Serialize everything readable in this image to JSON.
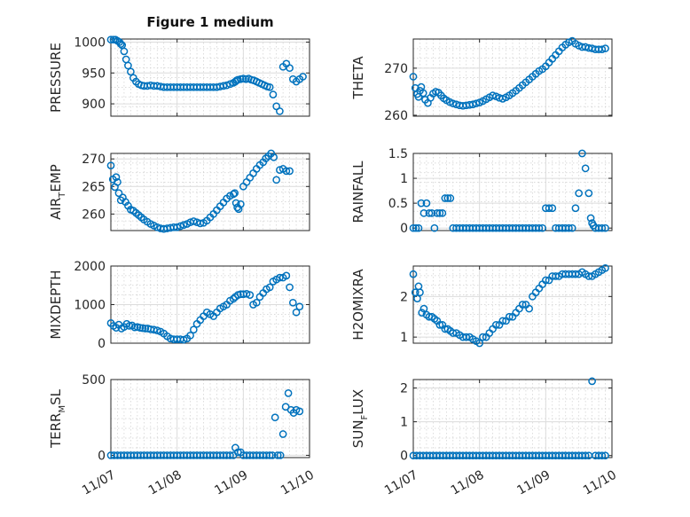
{
  "figure_title": "Figure 1 medium",
  "colors": {
    "marker": "#0072BD",
    "axis": "#262626"
  },
  "chart_data": [
    {
      "type": "scatter",
      "ylabel": "PRESSURE",
      "ylabel_main": "PRESSURE",
      "ylabel_sub": "",
      "ylabel_tail": "",
      "ylim": [
        880,
        1005
      ],
      "yticks": [
        900,
        950,
        1000
      ],
      "ytick_labels": [
        "900",
        "950",
        "1000"
      ],
      "xlim": [
        0,
        3
      ],
      "xticks": [
        0,
        1,
        2,
        3
      ],
      "xtick_labels": [],
      "x": [
        0.0,
        0.04,
        0.07,
        0.1,
        0.13,
        0.15,
        0.17,
        0.2,
        0.23,
        0.26,
        0.3,
        0.34,
        0.38,
        0.42,
        0.46,
        0.5,
        0.55,
        0.6,
        0.65,
        0.7,
        0.75,
        0.8,
        0.85,
        0.9,
        0.95,
        1.0,
        1.05,
        1.1,
        1.15,
        1.2,
        1.25,
        1.3,
        1.35,
        1.4,
        1.45,
        1.5,
        1.55,
        1.6,
        1.65,
        1.7,
        1.75,
        1.8,
        1.85,
        1.88,
        1.9,
        1.92,
        1.96,
        2.0,
        2.04,
        2.08,
        2.12,
        2.16,
        2.2,
        2.24,
        2.28,
        2.32,
        2.36,
        2.4,
        2.45,
        2.5,
        2.55,
        2.6,
        2.65,
        2.7,
        2.75,
        2.8,
        2.85,
        2.9
      ],
      "y": [
        1004,
        1004,
        1004,
        1002,
        1000,
        997,
        995,
        985,
        972,
        962,
        952,
        942,
        936,
        932,
        930,
        929,
        929,
        930,
        929,
        929,
        928,
        927,
        927,
        927,
        927,
        927,
        927,
        927,
        927,
        927,
        927,
        927,
        927,
        927,
        927,
        927,
        927,
        927,
        928,
        929,
        930,
        932,
        934,
        936,
        938,
        939,
        940,
        941,
        940,
        941,
        939,
        938,
        936,
        934,
        932,
        930,
        928,
        927,
        915,
        896,
        888,
        960,
        965,
        958,
        940,
        936,
        940,
        944
      ]
    },
    {
      "type": "scatter",
      "ylabel": "THETA",
      "ylabel_main": "THETA",
      "ylabel_sub": "",
      "ylabel_tail": "",
      "ylim": [
        259.8,
        276.2
      ],
      "yticks": [
        260,
        270
      ],
      "ytick_labels": [
        "260",
        "270"
      ],
      "xlim": [
        0,
        3
      ],
      "xticks": [
        0,
        1,
        2,
        3
      ],
      "xtick_labels": [],
      "x": [
        0.0,
        0.03,
        0.06,
        0.08,
        0.1,
        0.12,
        0.15,
        0.18,
        0.22,
        0.26,
        0.3,
        0.34,
        0.38,
        0.42,
        0.46,
        0.5,
        0.55,
        0.6,
        0.65,
        0.7,
        0.75,
        0.8,
        0.85,
        0.9,
        0.95,
        1.0,
        1.05,
        1.1,
        1.15,
        1.2,
        1.25,
        1.3,
        1.35,
        1.4,
        1.45,
        1.5,
        1.55,
        1.6,
        1.65,
        1.7,
        1.75,
        1.8,
        1.85,
        1.9,
        1.95,
        2.0,
        2.05,
        2.1,
        2.15,
        2.2,
        2.25,
        2.3,
        2.35,
        2.4,
        2.45,
        2.5,
        2.55,
        2.6,
        2.65,
        2.7,
        2.75,
        2.8,
        2.85,
        2.9
      ],
      "y": [
        268.2,
        265.8,
        264.5,
        263.9,
        265.2,
        266.0,
        264.7,
        263.3,
        262.6,
        263.7,
        264.6,
        265.0,
        264.8,
        264.2,
        263.6,
        263.2,
        262.8,
        262.5,
        262.3,
        262.1,
        262.0,
        262.1,
        262.2,
        262.3,
        262.5,
        262.7,
        263.0,
        263.4,
        263.8,
        264.2,
        264.0,
        263.7,
        263.5,
        263.8,
        264.2,
        264.7,
        265.2,
        265.8,
        266.4,
        267.0,
        267.6,
        268.2,
        268.8,
        269.4,
        269.8,
        270.4,
        271.2,
        272.0,
        272.8,
        273.6,
        274.4,
        275.0,
        275.5,
        275.8,
        275.2,
        274.8,
        274.5,
        274.5,
        274.3,
        274.2,
        274.0,
        274.0,
        274.0,
        274.2
      ]
    },
    {
      "type": "scatter",
      "ylabel": "AIR_TEMP",
      "ylabel_main": "AIR",
      "ylabel_sub": "T",
      "ylabel_tail": "EMP",
      "ylim": [
        257,
        271
      ],
      "yticks": [
        260,
        265,
        270
      ],
      "ytick_labels": [
        "260",
        "265",
        "270"
      ],
      "xlim": [
        0,
        3
      ],
      "xticks": [
        0,
        1,
        2,
        3
      ],
      "xtick_labels": [],
      "x": [
        0.0,
        0.03,
        0.06,
        0.08,
        0.1,
        0.12,
        0.15,
        0.18,
        0.22,
        0.26,
        0.3,
        0.34,
        0.38,
        0.42,
        0.46,
        0.5,
        0.55,
        0.6,
        0.65,
        0.7,
        0.75,
        0.8,
        0.85,
        0.9,
        0.95,
        1.0,
        1.05,
        1.1,
        1.15,
        1.2,
        1.25,
        1.3,
        1.35,
        1.4,
        1.45,
        1.5,
        1.55,
        1.6,
        1.65,
        1.7,
        1.75,
        1.8,
        1.85,
        1.87,
        1.89,
        1.91,
        1.93,
        1.96,
        2.0,
        2.05,
        2.1,
        2.15,
        2.2,
        2.25,
        2.3,
        2.34,
        2.38,
        2.42,
        2.46,
        2.5,
        2.55,
        2.6,
        2.65,
        2.7
      ],
      "y": [
        268.8,
        266.3,
        264.9,
        266.7,
        265.8,
        263.8,
        262.5,
        263.0,
        262.2,
        261.5,
        260.8,
        260.6,
        260.2,
        259.8,
        259.4,
        259.0,
        258.6,
        258.2,
        257.9,
        257.6,
        257.4,
        257.3,
        257.4,
        257.5,
        257.6,
        257.6,
        257.8,
        258.0,
        258.2,
        258.5,
        258.7,
        258.5,
        258.3,
        258.4,
        258.8,
        259.4,
        260.0,
        260.7,
        261.4,
        262.1,
        262.8,
        263.3,
        263.6,
        263.8,
        262.0,
        261.2,
        260.9,
        261.8,
        265.0,
        265.8,
        266.6,
        267.4,
        268.2,
        268.9,
        269.4,
        270.1,
        270.5,
        271.0,
        270.3,
        266.2,
        268.0,
        268.2,
        267.8,
        267.8
      ]
    },
    {
      "type": "scatter",
      "ylabel": "RAINFALL",
      "ylabel_main": "RAINFALL",
      "ylabel_sub": "",
      "ylabel_tail": "",
      "ylim": [
        -0.05,
        1.5
      ],
      "yticks": [
        0,
        0.5,
        1,
        1.5
      ],
      "ytick_labels": [
        "0",
        "0.5",
        "1",
        "1.5"
      ],
      "xlim": [
        0,
        3
      ],
      "xticks": [
        0,
        1,
        2,
        3
      ],
      "xtick_labels": [],
      "x": [
        0.0,
        0.04,
        0.08,
        0.12,
        0.16,
        0.2,
        0.24,
        0.28,
        0.32,
        0.36,
        0.4,
        0.44,
        0.48,
        0.52,
        0.56,
        0.6,
        0.65,
        0.7,
        0.75,
        0.8,
        0.85,
        0.9,
        0.95,
        1.0,
        1.05,
        1.1,
        1.15,
        1.2,
        1.25,
        1.3,
        1.35,
        1.4,
        1.45,
        1.5,
        1.55,
        1.6,
        1.65,
        1.7,
        1.75,
        1.8,
        1.85,
        1.9,
        1.95,
        2.0,
        2.05,
        2.1,
        2.15,
        2.2,
        2.25,
        2.3,
        2.35,
        2.4,
        2.45,
        2.5,
        2.55,
        2.6,
        2.65,
        2.68,
        2.7,
        2.72,
        2.75,
        2.8,
        2.85,
        2.9
      ],
      "y": [
        0,
        0,
        0,
        0.5,
        0.3,
        0.5,
        0.3,
        0.3,
        0,
        0.3,
        0.3,
        0.3,
        0.6,
        0.6,
        0.6,
        0,
        0,
        0,
        0,
        0,
        0,
        0,
        0,
        0,
        0,
        0,
        0,
        0,
        0,
        0,
        0,
        0,
        0,
        0,
        0,
        0,
        0,
        0,
        0,
        0,
        0,
        0,
        0,
        0.4,
        0.4,
        0.4,
        0,
        0,
        0,
        0,
        0,
        0,
        0.4,
        0.7,
        1.5,
        1.2,
        0.7,
        0.2,
        0.1,
        0.05,
        0,
        0,
        0,
        0
      ]
    },
    {
      "type": "scatter",
      "ylabel": "MIXDEPTH",
      "ylabel_main": "MIXDEPTH",
      "ylabel_sub": "",
      "ylabel_tail": "",
      "ylim": [
        0,
        2000
      ],
      "yticks": [
        0,
        1000,
        2000
      ],
      "ytick_labels": [
        "0",
        "1000",
        "2000"
      ],
      "xlim": [
        0,
        3
      ],
      "xticks": [
        0,
        1,
        2,
        3
      ],
      "xtick_labels": [],
      "x": [
        0.0,
        0.04,
        0.08,
        0.12,
        0.16,
        0.2,
        0.24,
        0.28,
        0.32,
        0.36,
        0.4,
        0.44,
        0.48,
        0.52,
        0.56,
        0.6,
        0.65,
        0.7,
        0.75,
        0.8,
        0.85,
        0.9,
        0.95,
        1.0,
        1.05,
        1.1,
        1.15,
        1.2,
        1.25,
        1.3,
        1.35,
        1.4,
        1.45,
        1.5,
        1.55,
        1.6,
        1.65,
        1.7,
        1.75,
        1.8,
        1.85,
        1.88,
        1.92,
        1.96,
        2.0,
        2.05,
        2.1,
        2.15,
        2.2,
        2.25,
        2.3,
        2.35,
        2.4,
        2.45,
        2.5,
        2.55,
        2.6,
        2.65,
        2.7,
        2.75,
        2.8,
        2.85
      ],
      "y": [
        520,
        450,
        400,
        480,
        380,
        420,
        500,
        450,
        460,
        410,
        420,
        400,
        390,
        380,
        380,
        360,
        350,
        330,
        300,
        250,
        180,
        120,
        100,
        100,
        100,
        90,
        120,
        200,
        350,
        500,
        600,
        700,
        800,
        750,
        700,
        800,
        900,
        950,
        1000,
        1100,
        1150,
        1200,
        1250,
        1270,
        1270,
        1280,
        1250,
        1000,
        1050,
        1200,
        1300,
        1400,
        1450,
        1600,
        1650,
        1700,
        1700,
        1750,
        1450,
        1050,
        800,
        950
      ]
    },
    {
      "type": "scatter",
      "ylabel": "H2OMIXRA",
      "ylabel_main": "H2OMIXRA",
      "ylabel_sub": "",
      "ylabel_tail": "",
      "ylim": [
        0.85,
        2.75
      ],
      "yticks": [
        1,
        2
      ],
      "ytick_labels": [
        "1",
        "2"
      ],
      "xlim": [
        0,
        3
      ],
      "xticks": [
        0,
        1,
        2,
        3
      ],
      "xtick_labels": [],
      "x": [
        0.0,
        0.03,
        0.06,
        0.08,
        0.1,
        0.13,
        0.16,
        0.2,
        0.24,
        0.28,
        0.32,
        0.36,
        0.4,
        0.44,
        0.48,
        0.52,
        0.56,
        0.6,
        0.65,
        0.7,
        0.75,
        0.8,
        0.85,
        0.9,
        0.95,
        1.0,
        1.05,
        1.1,
        1.15,
        1.2,
        1.25,
        1.3,
        1.35,
        1.4,
        1.45,
        1.5,
        1.55,
        1.6,
        1.65,
        1.7,
        1.75,
        1.8,
        1.85,
        1.9,
        1.95,
        2.0,
        2.05,
        2.1,
        2.15,
        2.2,
        2.25,
        2.3,
        2.35,
        2.4,
        2.45,
        2.5,
        2.55,
        2.6,
        2.65,
        2.7,
        2.75,
        2.8,
        2.85,
        2.9
      ],
      "y": [
        2.55,
        2.1,
        1.95,
        2.25,
        2.1,
        1.6,
        1.7,
        1.55,
        1.5,
        1.5,
        1.45,
        1.4,
        1.3,
        1.3,
        1.2,
        1.2,
        1.15,
        1.1,
        1.1,
        1.05,
        1.0,
        1.0,
        1.0,
        0.95,
        0.9,
        0.85,
        1.0,
        1.0,
        1.1,
        1.2,
        1.3,
        1.3,
        1.4,
        1.4,
        1.5,
        1.5,
        1.6,
        1.7,
        1.8,
        1.8,
        1.7,
        2.0,
        2.1,
        2.2,
        2.3,
        2.4,
        2.4,
        2.5,
        2.5,
        2.5,
        2.55,
        2.55,
        2.55,
        2.55,
        2.55,
        2.55,
        2.6,
        2.55,
        2.5,
        2.5,
        2.55,
        2.6,
        2.65,
        2.7
      ]
    },
    {
      "type": "scatter",
      "ylabel": "TERR_MSL",
      "ylabel_main": "TERR",
      "ylabel_sub": "M",
      "ylabel_tail": "SL",
      "ylim": [
        -15,
        500
      ],
      "yticks": [
        0,
        500
      ],
      "ytick_labels": [
        "0",
        "500"
      ],
      "xlim": [
        0,
        3
      ],
      "xticks": [
        0,
        1,
        2,
        3
      ],
      "xtick_labels": [
        "11/07",
        "11/08",
        "11/09",
        "11/10"
      ],
      "x": [
        0.0,
        0.05,
        0.1,
        0.15,
        0.2,
        0.25,
        0.3,
        0.35,
        0.4,
        0.45,
        0.5,
        0.55,
        0.6,
        0.65,
        0.7,
        0.75,
        0.8,
        0.85,
        0.9,
        0.95,
        1.0,
        1.05,
        1.1,
        1.15,
        1.2,
        1.25,
        1.3,
        1.35,
        1.4,
        1.45,
        1.5,
        1.55,
        1.6,
        1.65,
        1.7,
        1.75,
        1.8,
        1.85,
        1.88,
        1.92,
        1.96,
        2.0,
        2.05,
        2.1,
        2.15,
        2.2,
        2.25,
        2.3,
        2.35,
        2.4,
        2.44,
        2.48,
        2.52,
        2.56,
        2.6,
        2.64,
        2.68,
        2.72,
        2.76,
        2.8,
        2.85
      ],
      "y": [
        0,
        0,
        0,
        0,
        0,
        0,
        0,
        0,
        0,
        0,
        0,
        0,
        0,
        0,
        0,
        0,
        0,
        0,
        0,
        0,
        0,
        0,
        0,
        0,
        0,
        0,
        0,
        0,
        0,
        0,
        0,
        0,
        0,
        0,
        0,
        0,
        0,
        0,
        50,
        20,
        20,
        0,
        0,
        0,
        0,
        0,
        0,
        0,
        0,
        0,
        0,
        250,
        0,
        0,
        140,
        320,
        410,
        300,
        280,
        300,
        290
      ]
    },
    {
      "type": "scatter",
      "ylabel": "SUN_FLUX",
      "ylabel_main": "SUN",
      "ylabel_sub": "F",
      "ylabel_tail": "LUX",
      "ylim": [
        -0.06,
        2.25
      ],
      "yticks": [
        0,
        1,
        2
      ],
      "ytick_labels": [
        "0",
        "1",
        "2"
      ],
      "xlim": [
        0,
        3
      ],
      "xticks": [
        0,
        1,
        2,
        3
      ],
      "xtick_labels": [
        "11/07",
        "11/08",
        "11/09",
        "11/10"
      ],
      "x": [
        0.0,
        0.05,
        0.1,
        0.15,
        0.2,
        0.25,
        0.3,
        0.35,
        0.4,
        0.45,
        0.5,
        0.55,
        0.6,
        0.65,
        0.7,
        0.75,
        0.8,
        0.85,
        0.9,
        0.95,
        1.0,
        1.05,
        1.1,
        1.15,
        1.2,
        1.25,
        1.3,
        1.35,
        1.4,
        1.45,
        1.5,
        1.55,
        1.6,
        1.65,
        1.7,
        1.75,
        1.8,
        1.85,
        1.9,
        1.95,
        2.0,
        2.05,
        2.1,
        2.15,
        2.2,
        2.25,
        2.3,
        2.35,
        2.4,
        2.45,
        2.5,
        2.55,
        2.6,
        2.65,
        2.7,
        2.75,
        2.8,
        2.85,
        2.9
      ],
      "y": [
        0,
        0,
        0,
        0,
        0,
        0,
        0,
        0,
        0,
        0,
        0,
        0,
        0,
        0,
        0,
        0,
        0,
        0,
        0,
        0,
        0,
        0,
        0,
        0,
        0,
        0,
        0,
        0,
        0,
        0,
        0,
        0,
        0,
        0,
        0,
        0,
        0,
        0,
        0,
        0,
        0,
        0,
        0,
        0,
        0,
        0,
        0,
        0,
        0,
        0,
        0,
        0,
        0,
        0,
        2.2,
        0,
        0,
        0,
        0
      ]
    }
  ]
}
